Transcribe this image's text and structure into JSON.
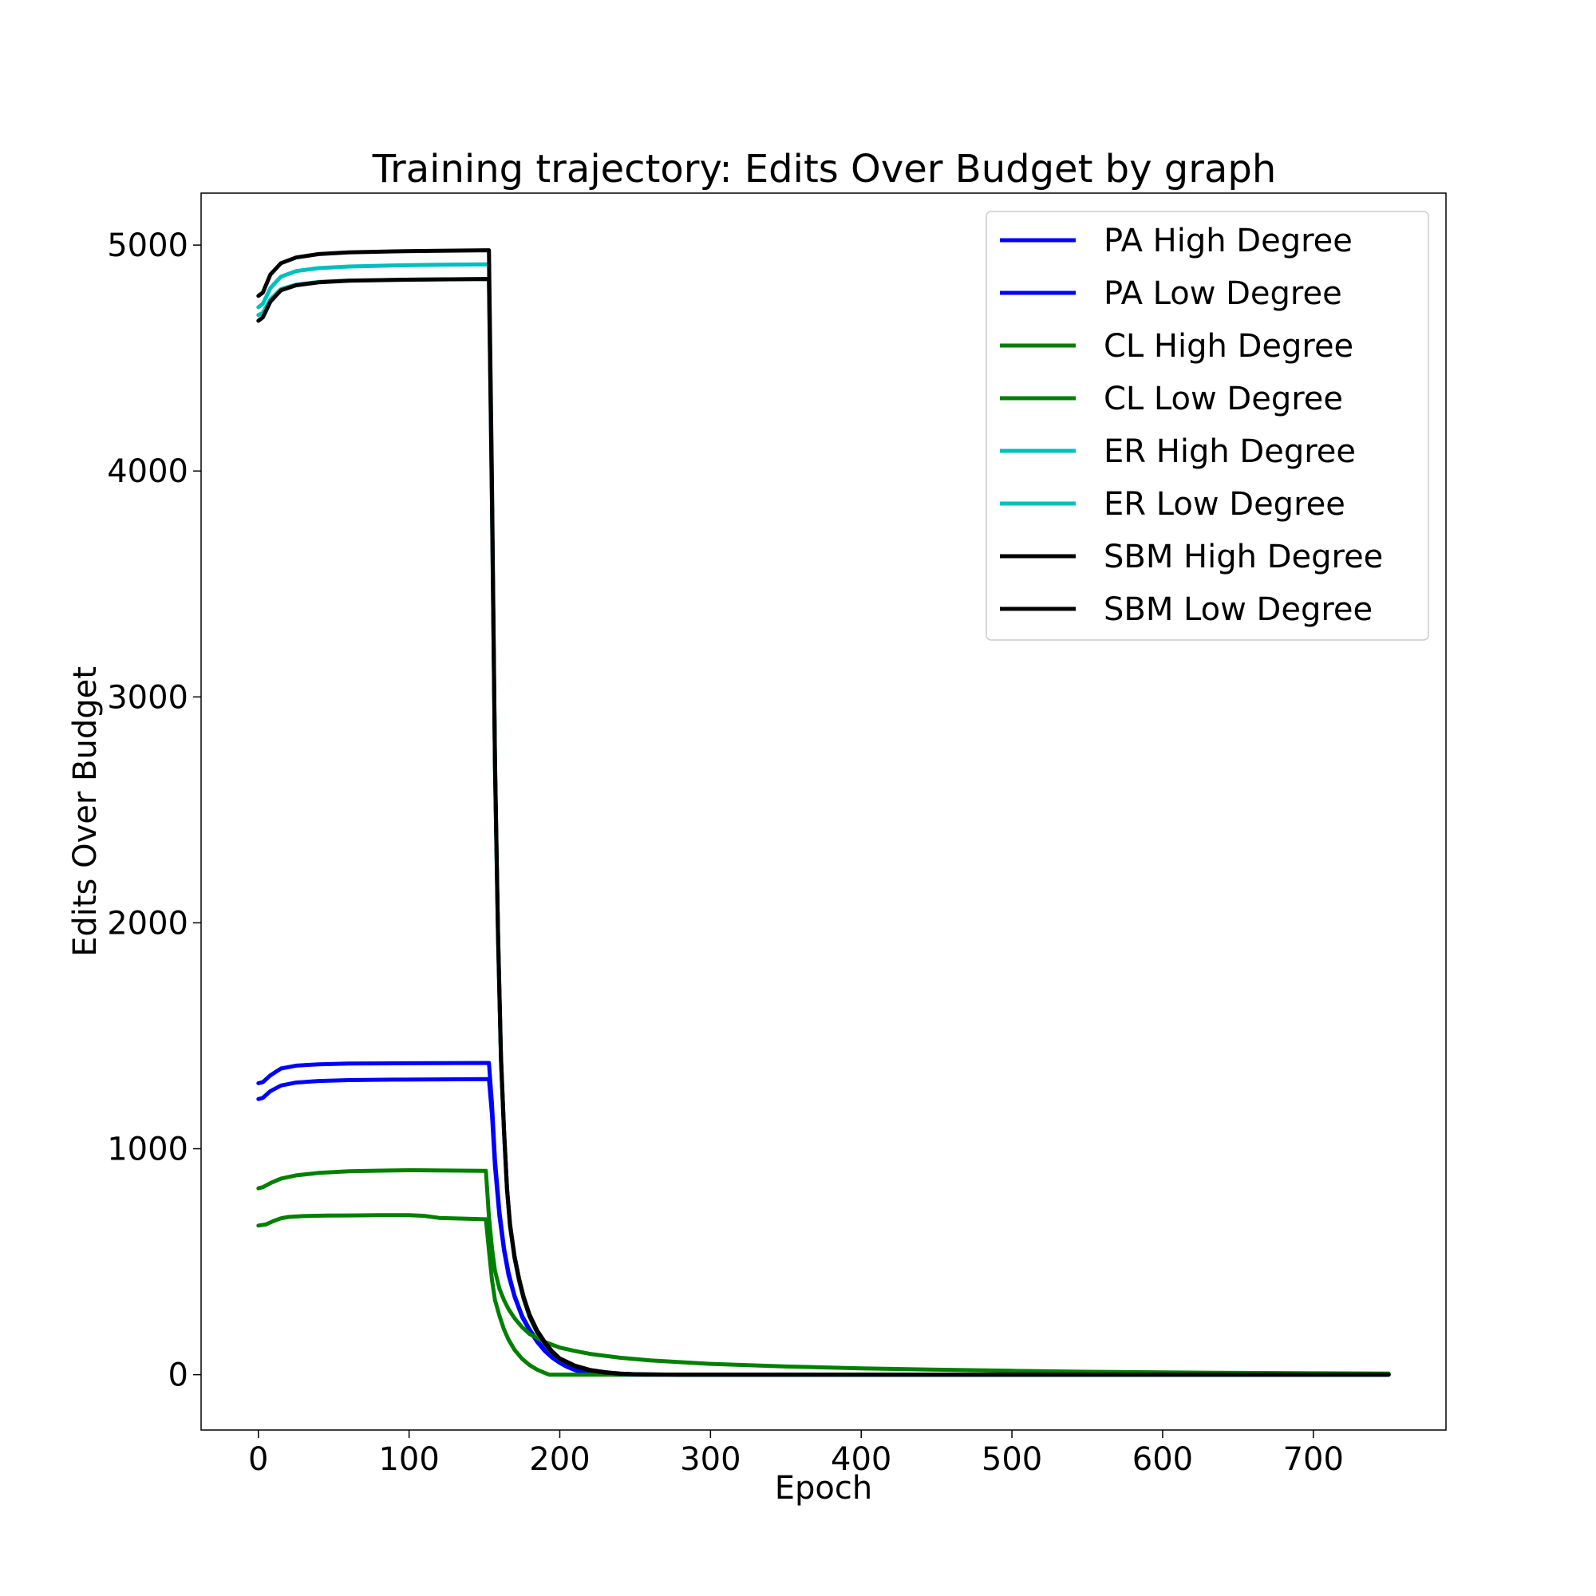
{
  "chart_data": {
    "type": "line",
    "title": "Training trajectory: Edits Over Budget by graph",
    "xlabel": "Epoch",
    "ylabel": "Edits Over Budget",
    "xlim": [
      -38,
      788
    ],
    "ylim": [
      -245,
      5230
    ],
    "xticks": [
      0,
      100,
      200,
      300,
      400,
      500,
      600,
      700
    ],
    "yticks": [
      0,
      1000,
      2000,
      3000,
      4000,
      5000
    ],
    "xtick_labels": [
      "0",
      "100",
      "200",
      "300",
      "400",
      "500",
      "600",
      "700"
    ],
    "ytick_labels": [
      "0",
      "1000",
      "2000",
      "3000",
      "4000",
      "5000"
    ],
    "legend_position": "top-right",
    "series": [
      {
        "name": "PA High Degree",
        "color": "#0000ff",
        "x": [
          0,
          3,
          8,
          15,
          25,
          40,
          60,
          90,
          120,
          152,
          153,
          155,
          157,
          160,
          163,
          166,
          170,
          175,
          180,
          185,
          190,
          195,
          200,
          205,
          210,
          215,
          220,
          225,
          230,
          240,
          260,
          300,
          400,
          500,
          600,
          750
        ],
        "y": [
          1290,
          1295,
          1325,
          1355,
          1368,
          1374,
          1377,
          1378,
          1379,
          1380,
          1380,
          1200,
          950,
          720,
          560,
          450,
          350,
          260,
          200,
          150,
          110,
          78,
          55,
          36,
          22,
          12,
          6,
          3,
          1,
          0,
          0,
          0,
          0,
          0,
          0,
          0
        ]
      },
      {
        "name": "PA Low Degree",
        "color": "#0000ff",
        "x": [
          0,
          3,
          8,
          15,
          25,
          40,
          60,
          90,
          120,
          152,
          153,
          155,
          157,
          160,
          163,
          166,
          170,
          175,
          180,
          185,
          190,
          195,
          200,
          205,
          210,
          215,
          220,
          225,
          230,
          240,
          260,
          300,
          400,
          500,
          600,
          750
        ],
        "y": [
          1220,
          1225,
          1255,
          1280,
          1293,
          1300,
          1304,
          1306,
          1307,
          1308,
          1308,
          1150,
          920,
          700,
          550,
          440,
          345,
          255,
          195,
          145,
          105,
          75,
          52,
          34,
          20,
          11,
          5,
          2,
          1,
          0,
          0,
          0,
          0,
          0,
          0,
          0
        ]
      },
      {
        "name": "CL High Degree",
        "color": "#008000",
        "x": [
          0,
          3,
          8,
          15,
          25,
          40,
          60,
          80,
          100,
          120,
          150,
          151,
          153,
          155,
          157,
          160,
          163,
          166,
          170,
          175,
          180,
          190,
          200,
          210,
          220,
          240,
          260,
          300,
          350,
          400,
          450,
          500,
          550,
          600,
          650,
          700,
          750
        ],
        "y": [
          825,
          830,
          848,
          868,
          882,
          893,
          900,
          903,
          905,
          904,
          902,
          902,
          700,
          560,
          460,
          380,
          330,
          290,
          250,
          210,
          180,
          145,
          120,
          105,
          92,
          75,
          63,
          48,
          36,
          28,
          22,
          17,
          13,
          10,
          8,
          6,
          5
        ]
      },
      {
        "name": "CL Low Degree",
        "color": "#008000",
        "x": [
          0,
          5,
          10,
          15,
          20,
          30,
          45,
          60,
          80,
          100,
          110,
          120,
          150,
          151,
          153,
          155,
          157,
          160,
          163,
          166,
          170,
          175,
          180,
          185,
          190,
          193,
          200,
          220,
          250,
          300,
          400,
          500,
          600,
          750
        ],
        "y": [
          660,
          665,
          680,
          692,
          698,
          702,
          704,
          705,
          706,
          706,
          703,
          694,
          688,
          688,
          550,
          420,
          330,
          260,
          200,
          155,
          110,
          70,
          42,
          22,
          8,
          0,
          0,
          0,
          0,
          0,
          0,
          0,
          0,
          0
        ]
      },
      {
        "name": "ER High Degree",
        "color": "#00bfbf",
        "x": [
          0,
          3,
          8,
          15,
          25,
          40,
          60,
          90,
          120,
          152,
          153,
          155,
          157,
          159,
          161,
          163,
          165,
          167,
          170,
          173,
          176,
          180,
          185,
          190,
          195,
          200,
          210,
          220,
          230,
          240,
          250,
          260,
          280,
          300,
          400,
          500,
          600,
          750
        ],
        "y": [
          4725,
          4740,
          4810,
          4860,
          4885,
          4898,
          4905,
          4910,
          4913,
          4915,
          4915,
          3900,
          2700,
          1950,
          1400,
          1080,
          820,
          660,
          520,
          420,
          340,
          260,
          190,
          140,
          100,
          70,
          38,
          20,
          10,
          5,
          2,
          1,
          0,
          0,
          0,
          0,
          0,
          0
        ]
      },
      {
        "name": "ER Low Degree",
        "color": "#00bfbf",
        "x": [
          0,
          3,
          8,
          15,
          25,
          40,
          60,
          90,
          120,
          152,
          153,
          155,
          157,
          159,
          161,
          163,
          165,
          167,
          170,
          173,
          176,
          180,
          185,
          190,
          195,
          200,
          210,
          220,
          230,
          240,
          250,
          260,
          280,
          300,
          400,
          500,
          600,
          750
        ],
        "y": [
          4690,
          4700,
          4760,
          4805,
          4825,
          4837,
          4843,
          4846,
          4848,
          4850,
          4850,
          3850,
          2680,
          1930,
          1390,
          1070,
          815,
          655,
          515,
          415,
          335,
          255,
          185,
          137,
          98,
          68,
          37,
          19,
          9,
          4,
          2,
          1,
          0,
          0,
          0,
          0,
          0,
          0
        ]
      },
      {
        "name": "SBM High Degree",
        "color": "#000000",
        "x": [
          0,
          3,
          8,
          15,
          25,
          40,
          60,
          90,
          120,
          152,
          153,
          155,
          157,
          159,
          161,
          163,
          165,
          167,
          170,
          173,
          176,
          180,
          185,
          190,
          195,
          200,
          210,
          220,
          230,
          240,
          250,
          260,
          280,
          300,
          400,
          500,
          600,
          750
        ],
        "y": [
          4775,
          4790,
          4870,
          4920,
          4945,
          4960,
          4968,
          4972,
          4975,
          4977,
          4977,
          3950,
          2720,
          1960,
          1410,
          1085,
          825,
          665,
          525,
          425,
          345,
          265,
          195,
          145,
          103,
          72,
          40,
          21,
          11,
          5,
          2,
          1,
          0,
          0,
          0,
          0,
          0,
          0
        ]
      },
      {
        "name": "SBM Low Degree",
        "color": "#000000",
        "x": [
          0,
          3,
          8,
          15,
          25,
          40,
          60,
          90,
          120,
          152,
          153,
          155,
          157,
          159,
          161,
          163,
          165,
          167,
          170,
          173,
          176,
          180,
          185,
          190,
          195,
          200,
          210,
          220,
          230,
          240,
          250,
          260,
          280,
          300,
          400,
          500,
          600,
          750
        ],
        "y": [
          4665,
          4680,
          4750,
          4800,
          4822,
          4835,
          4842,
          4846,
          4848,
          4850,
          4850,
          3860,
          2690,
          1940,
          1395,
          1075,
          818,
          658,
          518,
          418,
          338,
          258,
          188,
          139,
          99,
          69,
          37,
          19,
          9,
          4,
          2,
          1,
          0,
          0,
          0,
          0,
          0,
          0
        ]
      }
    ]
  }
}
